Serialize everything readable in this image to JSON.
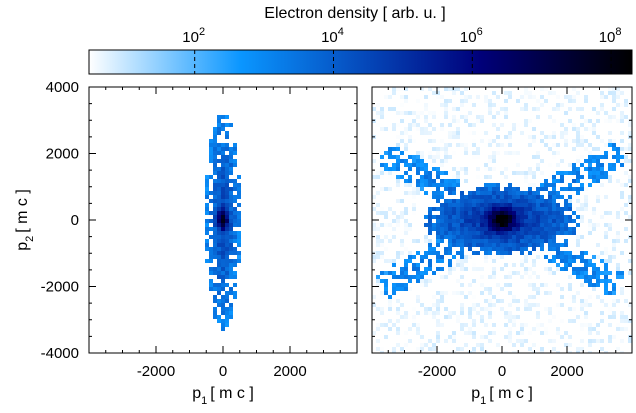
{
  "chart_data": {
    "type": "heatmap",
    "colorbar": {
      "title": "Electron density [ arb. u. ]",
      "scale": "log",
      "range": [
        3,
        200000000
      ],
      "ticks": [
        {
          "base": "10",
          "exp": "2",
          "value": 100
        },
        {
          "base": "10",
          "exp": "4",
          "value": 10000
        },
        {
          "base": "10",
          "exp": "6",
          "value": 1000000
        },
        {
          "base": "10",
          "exp": "8",
          "value": 100000000
        }
      ],
      "colors": [
        "#ffffff",
        "#0a96ff",
        "#00007a",
        "#000000"
      ]
    },
    "ylabel": {
      "base": "p",
      "sub": "2",
      "unit": "[ m c ]"
    },
    "yticks": [
      "4000",
      "2000",
      "0",
      "-2000",
      "-4000"
    ],
    "ytick_values": [
      4000,
      2000,
      0,
      -2000,
      -4000
    ],
    "panels": [
      {
        "name": "left",
        "shape": "vertical-ellipse",
        "xlim": [
          -4000,
          4000
        ],
        "ylim": [
          -4000,
          4000
        ],
        "xlabel": {
          "base": "p",
          "sub": "1",
          "unit": "[ m c ]"
        },
        "xticks": [
          "-2000",
          "0",
          "2000"
        ],
        "xtick_values": [
          -2000,
          0,
          2000
        ]
      },
      {
        "name": "right",
        "shape": "x-shaped",
        "xlim": [
          -4000,
          4000
        ],
        "ylim": [
          -4000,
          4000
        ],
        "xlabel": {
          "base": "p",
          "sub": "1",
          "unit": "[ m c ]"
        },
        "xticks": [
          "-2000",
          "0",
          "2000"
        ],
        "xtick_values": [
          -2000,
          0,
          2000
        ]
      }
    ]
  }
}
